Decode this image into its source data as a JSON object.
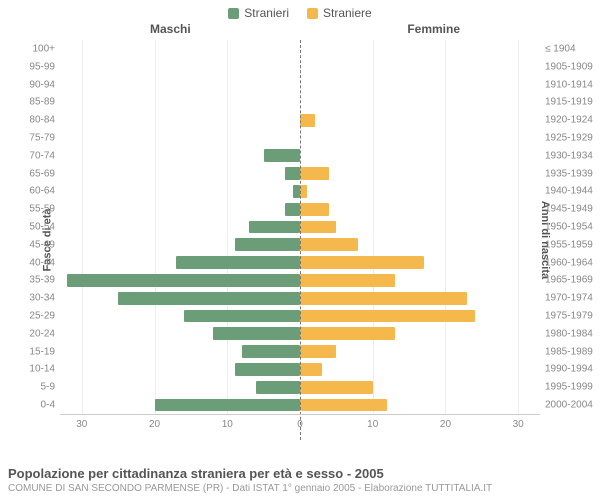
{
  "legend": {
    "male": {
      "label": "Stranieri",
      "color": "#6b9e78"
    },
    "female": {
      "label": "Straniere",
      "color": "#f5b84d"
    }
  },
  "headers": {
    "male": "Maschi",
    "female": "Femmine"
  },
  "axes": {
    "left_title": "Fasce di età",
    "right_title": "Anni di nascita",
    "x_max": 33,
    "x_ticks_left": [
      30,
      20,
      10,
      0
    ],
    "x_ticks_right": [
      0,
      10,
      20,
      30
    ],
    "grid_positions": [
      -30,
      -20,
      -10,
      10,
      20,
      30
    ],
    "grid_color": "#eeeeee"
  },
  "chart": {
    "type": "population-pyramid",
    "bar_height_pct": 72,
    "background": "#ffffff",
    "rows": [
      {
        "age": "100+",
        "birth": "≤ 1904",
        "m": 0,
        "f": 0
      },
      {
        "age": "95-99",
        "birth": "1905-1909",
        "m": 0,
        "f": 0
      },
      {
        "age": "90-94",
        "birth": "1910-1914",
        "m": 0,
        "f": 0
      },
      {
        "age": "85-89",
        "birth": "1915-1919",
        "m": 0,
        "f": 0
      },
      {
        "age": "80-84",
        "birth": "1920-1924",
        "m": 0,
        "f": 2
      },
      {
        "age": "75-79",
        "birth": "1925-1929",
        "m": 0,
        "f": 0
      },
      {
        "age": "70-74",
        "birth": "1930-1934",
        "m": 5,
        "f": 0
      },
      {
        "age": "65-69",
        "birth": "1935-1939",
        "m": 2,
        "f": 4
      },
      {
        "age": "60-64",
        "birth": "1940-1944",
        "m": 1,
        "f": 1
      },
      {
        "age": "55-59",
        "birth": "1945-1949",
        "m": 2,
        "f": 4
      },
      {
        "age": "50-54",
        "birth": "1950-1954",
        "m": 7,
        "f": 5
      },
      {
        "age": "45-49",
        "birth": "1955-1959",
        "m": 9,
        "f": 8
      },
      {
        "age": "40-44",
        "birth": "1960-1964",
        "m": 17,
        "f": 17
      },
      {
        "age": "35-39",
        "birth": "1965-1969",
        "m": 32,
        "f": 13
      },
      {
        "age": "30-34",
        "birth": "1970-1974",
        "m": 25,
        "f": 23
      },
      {
        "age": "25-29",
        "birth": "1975-1979",
        "m": 16,
        "f": 24
      },
      {
        "age": "20-24",
        "birth": "1980-1984",
        "m": 12,
        "f": 13
      },
      {
        "age": "15-19",
        "birth": "1985-1989",
        "m": 8,
        "f": 5
      },
      {
        "age": "10-14",
        "birth": "1990-1994",
        "m": 9,
        "f": 3
      },
      {
        "age": "5-9",
        "birth": "1995-1999",
        "m": 6,
        "f": 10
      },
      {
        "age": "0-4",
        "birth": "2000-2004",
        "m": 20,
        "f": 12
      }
    ]
  },
  "title": "Popolazione per cittadinanza straniera per età e sesso - 2005",
  "subtitle": "COMUNE DI SAN SECONDO PARMENSE (PR) - Dati ISTAT 1° gennaio 2005 - Elaborazione TUTTITALIA.IT"
}
